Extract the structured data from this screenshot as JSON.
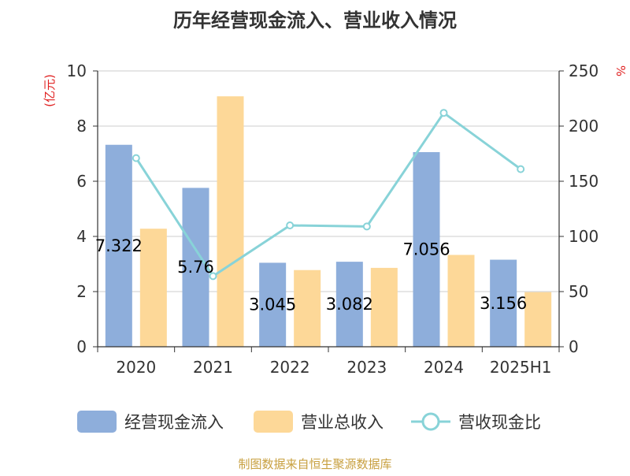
{
  "chart_data": {
    "type": "bar",
    "title": "历年经营现金流入、营业收入情况",
    "categories": [
      "2020",
      "2021",
      "2022",
      "2023",
      "2024",
      "2025H1"
    ],
    "series": [
      {
        "name": "经营现金流入",
        "type": "bar",
        "axis": "left",
        "color": "#8eaedb",
        "values": [
          7.322,
          5.76,
          3.045,
          3.082,
          7.056,
          3.156
        ],
        "labels": [
          "7.322",
          "5.76",
          "3.045",
          "3.082",
          "7.056",
          "3.156"
        ]
      },
      {
        "name": "营业总收入",
        "type": "bar",
        "axis": "left",
        "color": "#fdd898",
        "values": [
          4.28,
          9.08,
          2.78,
          2.86,
          3.33,
          1.98
        ]
      },
      {
        "name": "营收现金比",
        "type": "line",
        "axis": "right",
        "color": "#88d3d8",
        "values": [
          171,
          64,
          110,
          109,
          212,
          161
        ]
      }
    ],
    "ylabel_left": "(亿元)",
    "ylabel_right": "%",
    "ylim_left": [
      0,
      10
    ],
    "yticks_left": [
      "0",
      "2",
      "4",
      "6",
      "8",
      "10"
    ],
    "ylim_right": [
      0,
      250
    ],
    "yticks_right": [
      "0",
      "50",
      "100",
      "150",
      "200",
      "250"
    ],
    "grid": true,
    "legend_position": "bottom",
    "source": "制图数据来自恒生聚源数据库"
  }
}
